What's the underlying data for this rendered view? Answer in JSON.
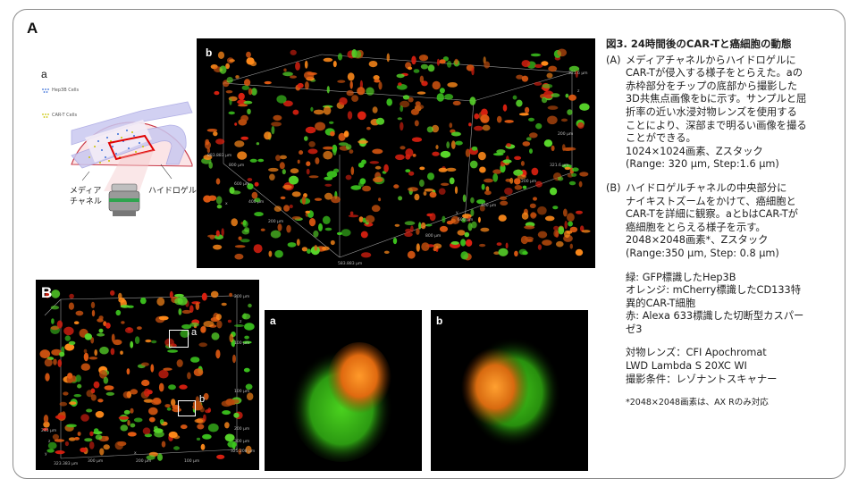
{
  "panel_A": {
    "letter": "A",
    "diagram": {
      "label": "a",
      "legend_hep3b": "Hep3B Cells",
      "legend_cart": "CAR-T Cells",
      "media_channel_line1": "メディア",
      "media_channel_line2": "チャネル",
      "hydrogel_label": "ハイドロゲル"
    },
    "image_b": {
      "label": "b",
      "ticks": [
        "883.883 μm",
        "800 μm",
        "600 μm",
        "400 μm",
        "200 μm",
        "400 μm",
        "600 μm",
        "800 μm",
        "583.883 μm",
        "321.6 μm",
        "200 μm",
        "200 μm",
        "321.6 μm",
        "x",
        "y",
        "z"
      ]
    }
  },
  "panel_B": {
    "letter": "B",
    "box_a": "a",
    "box_b": "b",
    "ticks": [
      "200 μm",
      "100 μm",
      "z",
      "100 μm",
      "200 μm",
      "300 μm",
      "325.208 μm",
      "245 μm",
      "z",
      "y",
      "323.383 μm",
      "300 μm",
      "200 μm",
      "100 μm",
      "x"
    ],
    "zoom_a_label": "a",
    "zoom_b_label": "b"
  },
  "text": {
    "title": "図3. 24時間後のCAR-Tと癌細胞の動態",
    "A_marker": "(A)",
    "A_lines": [
      "メディアチャネルからハイドロゲルに",
      "CAR-Tが侵入する様子をとらえた。aの",
      "赤枠部分をチップの底部から撮影した",
      "3D共焦点画像をbに示す。サンプルと屈",
      "折率の近い水浸対物レンズを使用する",
      "ことにより、深部まで明るい画像を撮る",
      "ことができる。",
      "1024×1024画素、Zスタック",
      "(Range: 320 μm, Step:1.6 μm)"
    ],
    "B_marker": "(B)",
    "B_lines": [
      "ハイドロゲルチャネルの中央部分に",
      "ナイキストズームをかけて、癌細胞と",
      "CAR-Tを詳細に観察。aとbはCAR-Tが",
      "癌細胞をとらえる様子を示す。",
      "2048×2048画素*、Zスタック",
      "(Range:350 μm, Step: 0.8 μm)"
    ],
    "color_lines": [
      "緑: GFP標識したHep3B",
      "オレンジ: mCherry標識したCD133特",
      "異的CAR-T細胞",
      "赤: Alexa 633標識した切断型カスパー",
      "ゼ3"
    ],
    "objective_lines": [
      "対物レンズ：CFI Apochromat",
      "LWD Lambda S 20XC WI",
      "撮影条件：レゾナントスキャナー"
    ],
    "footnote": "*2048×2048画素は、AX Rのみ対応"
  },
  "colors": {
    "gfp_green": "#3cc41e",
    "cart_orange": "#ff8a1a",
    "caspase_red": "#d92010",
    "background": "#000000"
  }
}
